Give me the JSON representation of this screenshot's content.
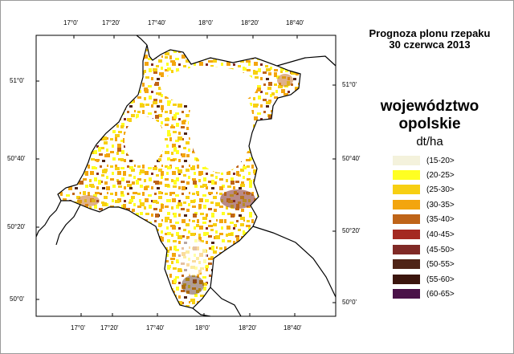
{
  "title": {
    "line1": "Prognoza plonu rzepaku",
    "line2": "30 czerwca 2013"
  },
  "region": {
    "line1": "województwo",
    "line2": "opolskie"
  },
  "unit": "dt/ha",
  "longitude_labels": [
    "17°0'",
    "17°20'",
    "17°40'",
    "18°0'",
    "18°20'",
    "18°40'"
  ],
  "latitude_labels_left": [
    "51°0'",
    "50°40'",
    "50°20'",
    "50°0'"
  ],
  "latitude_labels_right": [
    "51°0'",
    "50°40'",
    "50°20'",
    "50°0'"
  ],
  "legend": [
    {
      "label": "(15-20>",
      "color": "#f4f2dc"
    },
    {
      "label": "(20-25>",
      "color": "#ffff22"
    },
    {
      "label": "(25-30>",
      "color": "#f7cf12"
    },
    {
      "label": "(30-35>",
      "color": "#f3a50e"
    },
    {
      "label": "(35-40>",
      "color": "#bf6418"
    },
    {
      "label": "(40-45>",
      "color": "#a42a22"
    },
    {
      "label": "(45-50>",
      "color": "#802a26"
    },
    {
      "label": "(50-55>",
      "color": "#4f2417"
    },
    {
      "label": "(55-60>",
      "color": "#3b150d"
    },
    {
      "label": "(60-65>",
      "color": "#4a1248"
    }
  ]
}
